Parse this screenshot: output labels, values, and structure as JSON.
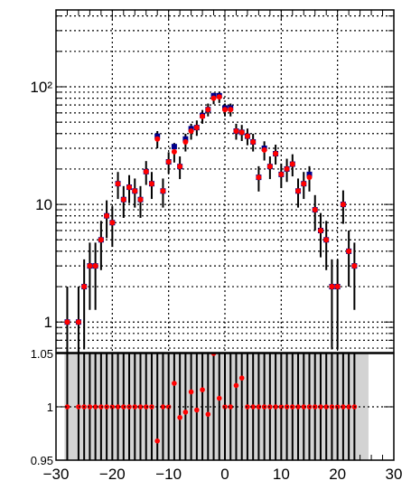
{
  "chart_data": [
    {
      "type": "scatter",
      "panel": "top",
      "title": "",
      "xlabel": "",
      "ylabel": "",
      "xlim": [
        -30,
        30
      ],
      "ylim": [
        0.55,
        450
      ],
      "yscale": "log",
      "grid": true,
      "y_ticks_major": [
        1,
        10,
        100
      ],
      "y_tick_labels": [
        "1",
        "10",
        "10²"
      ],
      "series": [
        {
          "name": "",
          "color": "#00008b",
          "marker": "square",
          "points": [
            {
              "x": -28,
              "y": 1
            },
            {
              "x": -26,
              "y": 1
            },
            {
              "x": -25,
              "y": 2
            },
            {
              "x": -24,
              "y": 3
            },
            {
              "x": -23,
              "y": 3
            },
            {
              "x": -22,
              "y": 5
            },
            {
              "x": -21,
              "y": 8
            },
            {
              "x": -20,
              "y": 7
            },
            {
              "x": -19,
              "y": 15
            },
            {
              "x": -18,
              "y": 11
            },
            {
              "x": -17,
              "y": 14
            },
            {
              "x": -16,
              "y": 13
            },
            {
              "x": -15,
              "y": 11
            },
            {
              "x": -14,
              "y": 19
            },
            {
              "x": -13,
              "y": 15
            },
            {
              "x": -12,
              "y": 38
            },
            {
              "x": -11,
              "y": 13
            },
            {
              "x": -10,
              "y": 23
            },
            {
              "x": -9,
              "y": 31
            },
            {
              "x": -8,
              "y": 21
            },
            {
              "x": -7,
              "y": 36
            },
            {
              "x": -6,
              "y": 44
            },
            {
              "x": -5,
              "y": 45
            },
            {
              "x": -4,
              "y": 57
            },
            {
              "x": -3,
              "y": 64
            },
            {
              "x": -2,
              "y": 84
            },
            {
              "x": -1,
              "y": 84
            },
            {
              "x": 0,
              "y": 66
            },
            {
              "x": 1,
              "y": 66
            },
            {
              "x": 2,
              "y": 42
            },
            {
              "x": 3,
              "y": 41
            },
            {
              "x": 4,
              "y": 38
            },
            {
              "x": 5,
              "y": 34
            },
            {
              "x": 6,
              "y": 17
            },
            {
              "x": 7,
              "y": 30
            },
            {
              "x": 8,
              "y": 21
            },
            {
              "x": 9,
              "y": 27
            },
            {
              "x": 10,
              "y": 18
            },
            {
              "x": 11,
              "y": 20
            },
            {
              "x": 12,
              "y": 22
            },
            {
              "x": 13,
              "y": 13
            },
            {
              "x": 14,
              "y": 15
            },
            {
              "x": 15,
              "y": 18
            },
            {
              "x": 16,
              "y": 9
            },
            {
              "x": 17,
              "y": 6
            },
            {
              "x": 18,
              "y": 5
            },
            {
              "x": 19,
              "y": 2
            },
            {
              "x": 20,
              "y": 2
            },
            {
              "x": 21,
              "y": 10
            },
            {
              "x": 22,
              "y": 4
            },
            {
              "x": 23,
              "y": 3
            }
          ]
        },
        {
          "name": "",
          "color": "#ff0000",
          "marker": "circle",
          "points": [
            {
              "x": -28,
              "y": 1
            },
            {
              "x": -26,
              "y": 1
            },
            {
              "x": -25,
              "y": 2
            },
            {
              "x": -24,
              "y": 3
            },
            {
              "x": -23,
              "y": 3
            },
            {
              "x": -22,
              "y": 5
            },
            {
              "x": -21,
              "y": 8
            },
            {
              "x": -20,
              "y": 7
            },
            {
              "x": -19,
              "y": 15
            },
            {
              "x": -18,
              "y": 11
            },
            {
              "x": -17,
              "y": 14
            },
            {
              "x": -16,
              "y": 13
            },
            {
              "x": -15,
              "y": 11
            },
            {
              "x": -14,
              "y": 19
            },
            {
              "x": -13,
              "y": 15
            },
            {
              "x": -12,
              "y": 36
            },
            {
              "x": -11,
              "y": 13
            },
            {
              "x": -10,
              "y": 23
            },
            {
              "x": -9,
              "y": 28
            },
            {
              "x": -8,
              "y": 21
            },
            {
              "x": -7,
              "y": 34
            },
            {
              "x": -6,
              "y": 42
            },
            {
              "x": -5,
              "y": 45
            },
            {
              "x": -4,
              "y": 56
            },
            {
              "x": -3,
              "y": 64
            },
            {
              "x": -2,
              "y": 80
            },
            {
              "x": -1,
              "y": 82
            },
            {
              "x": 0,
              "y": 64
            },
            {
              "x": 1,
              "y": 64
            },
            {
              "x": 2,
              "y": 42
            },
            {
              "x": 3,
              "y": 41
            },
            {
              "x": 4,
              "y": 38
            },
            {
              "x": 5,
              "y": 34
            },
            {
              "x": 6,
              "y": 17
            },
            {
              "x": 7,
              "y": 29
            },
            {
              "x": 8,
              "y": 21
            },
            {
              "x": 9,
              "y": 27
            },
            {
              "x": 10,
              "y": 18
            },
            {
              "x": 11,
              "y": 20
            },
            {
              "x": 12,
              "y": 22
            },
            {
              "x": 13,
              "y": 13
            },
            {
              "x": 14,
              "y": 15
            },
            {
              "x": 15,
              "y": 17
            },
            {
              "x": 16,
              "y": 9
            },
            {
              "x": 17,
              "y": 6
            },
            {
              "x": 18,
              "y": 5
            },
            {
              "x": 19,
              "y": 2
            },
            {
              "x": 20,
              "y": 2
            },
            {
              "x": 21,
              "y": 10
            },
            {
              "x": 22,
              "y": 4
            },
            {
              "x": 23,
              "y": 3
            }
          ]
        }
      ]
    },
    {
      "type": "scatter",
      "panel": "ratio",
      "title": "",
      "xlabel": "",
      "ylabel": "",
      "xlim": [
        -30,
        30
      ],
      "ylim": [
        0.95,
        1.05
      ],
      "grid": true,
      "x_ticks": [
        -30,
        -20,
        -10,
        0,
        10,
        20,
        30
      ],
      "x_tick_labels": [
        "−30",
        "−20",
        "−10",
        "0",
        "10",
        "20",
        "30"
      ],
      "y_ticks": [
        0.95,
        1,
        1.05
      ],
      "y_tick_labels": [
        "0.95",
        "1",
        "1.05"
      ],
      "band": {
        "color": "#d3d3d3",
        "x_range": [
          -28.5,
          25.5
        ],
        "y_range": [
          0.95,
          1.05
        ]
      },
      "series": [
        {
          "name": "",
          "color": "#ff0000",
          "marker": "circle",
          "x": [
            -28,
            -26,
            -25,
            -24,
            -23,
            -22,
            -21,
            -20,
            -19,
            -18,
            -17,
            -16,
            -15,
            -14,
            -13,
            -12,
            -11,
            -10,
            -9,
            -8,
            -7,
            -6,
            -5,
            -4,
            -3,
            -2,
            -1,
            0,
            1,
            2,
            3,
            4,
            5,
            6,
            7,
            8,
            9,
            10,
            11,
            12,
            13,
            14,
            15,
            16,
            17,
            18,
            19,
            20,
            21,
            22,
            23
          ],
          "y": [
            1,
            1,
            1,
            1,
            1,
            1,
            1,
            1,
            1,
            1,
            1,
            1,
            1,
            1,
            1,
            0.968,
            1,
            1,
            1.022,
            0.99,
            0.995,
            1.014,
            0.997,
            1.016,
            0.993,
            1.05,
            1.008,
            1,
            1,
            1.02,
            1.027,
            1,
            1,
            1,
            1,
            1,
            1,
            1,
            1,
            1,
            1,
            1,
            1,
            1,
            1,
            1,
            1,
            1,
            1,
            1,
            1
          ]
        }
      ]
    }
  ]
}
